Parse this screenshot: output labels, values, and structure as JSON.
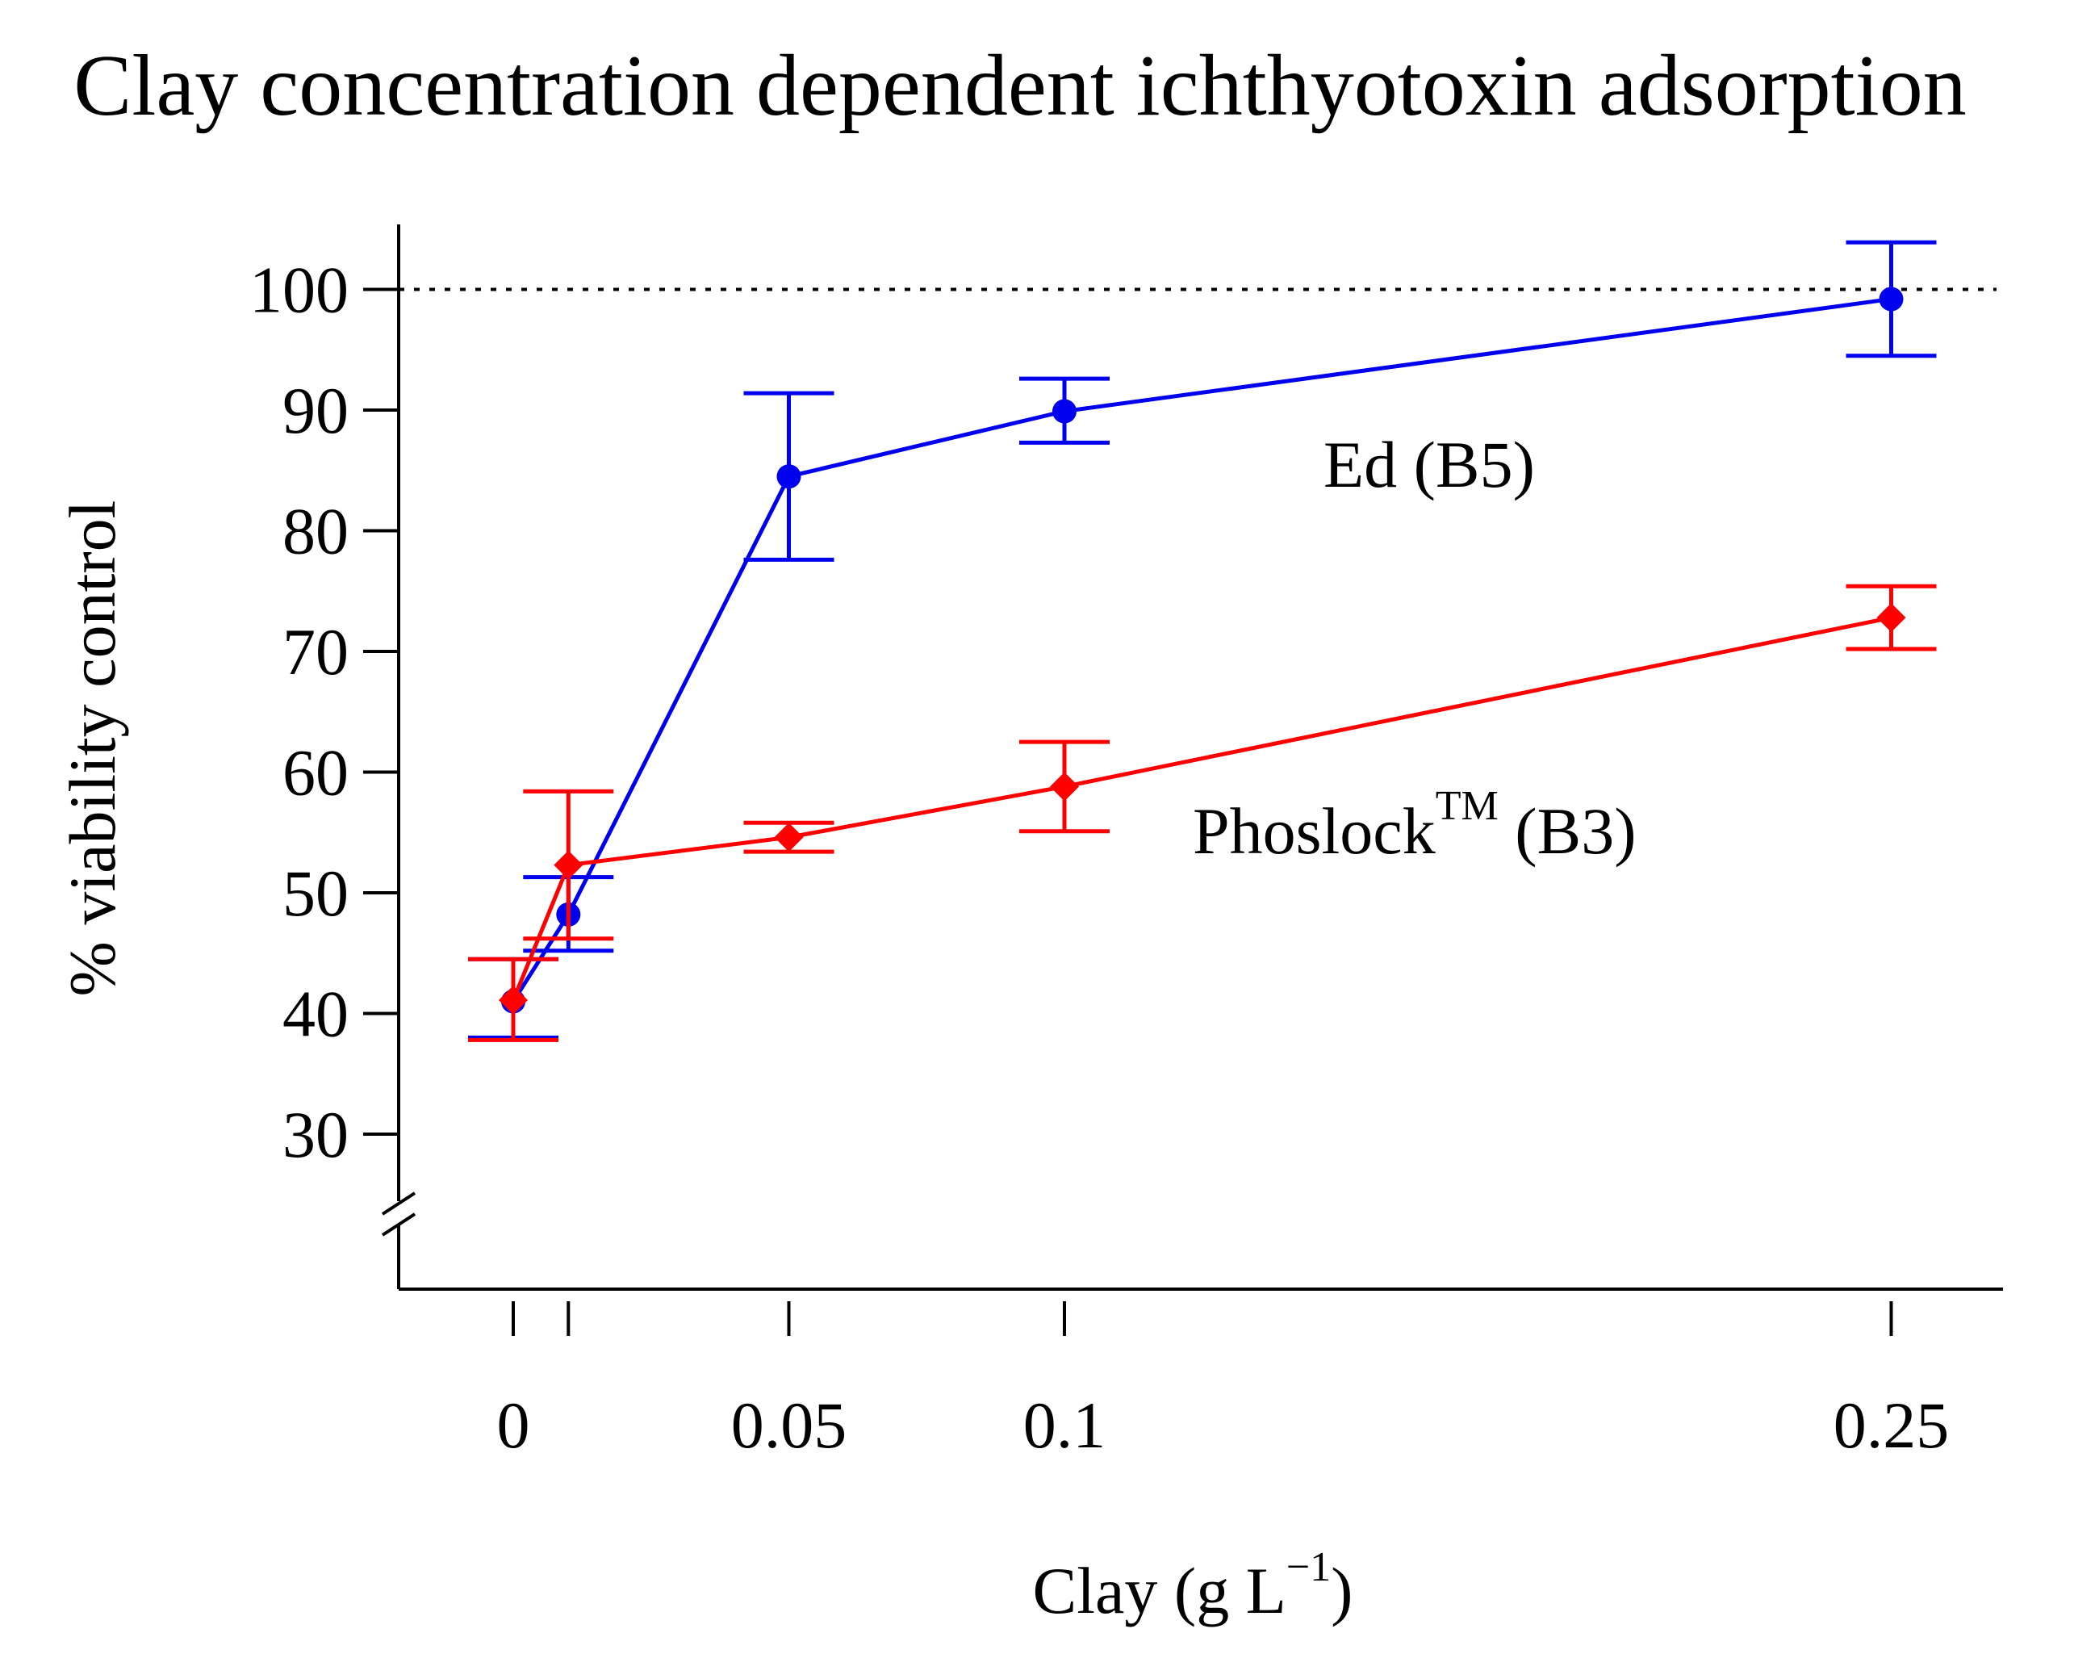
{
  "chart_data": {
    "type": "line",
    "title": "Clay concentration dependent ichthyotoxin adsorption",
    "xlabel": "Clay (g L",
    "xlabel_exponent": "−1",
    "xlabel_close": ")",
    "ylabel": "% viability control",
    "x_ticks": [
      0,
      0.01,
      0.05,
      0.1,
      0.25
    ],
    "x_tick_labels": [
      "0",
      "",
      "0.05",
      "0.1",
      "0.25"
    ],
    "y_ticks": [
      30,
      40,
      50,
      60,
      70,
      80,
      90,
      100
    ],
    "y_tick_labels": [
      "30",
      "40",
      "50",
      "60",
      "70",
      "80",
      "90",
      "100"
    ],
    "ylim": [
      23,
      105
    ],
    "xlim": [
      -0.02,
      0.27
    ],
    "reference_line": {
      "y": 100,
      "style": "dotted"
    },
    "axis_break": "y",
    "series": [
      {
        "name": "Ed (B5)",
        "label": "Ed (B5)",
        "color": "#0000ee",
        "marker": "circle",
        "x": [
          0,
          0.01,
          0.05,
          0.1,
          0.25
        ],
        "y": [
          41,
          48.2,
          84.5,
          89.9,
          99.2
        ],
        "err_low": [
          38,
          45.2,
          77.6,
          87.3,
          94.5
        ],
        "err_high": [
          44.5,
          51.3,
          91.4,
          92.6,
          103.9
        ]
      },
      {
        "name": "Phoslock (B3)",
        "label": "Phoslock",
        "label_superscript": "TM",
        "label_suffix": " (B3)",
        "color": "#ff0000",
        "marker": "diamond",
        "x": [
          0,
          0.01,
          0.05,
          0.1,
          0.25
        ],
        "y": [
          41.1,
          52.3,
          54.6,
          58.8,
          72.8
        ],
        "err_low": [
          37.8,
          46.2,
          53.4,
          55.1,
          70.2
        ],
        "err_high": [
          44.5,
          58.4,
          55.8,
          62.5,
          75.4
        ]
      }
    ]
  }
}
